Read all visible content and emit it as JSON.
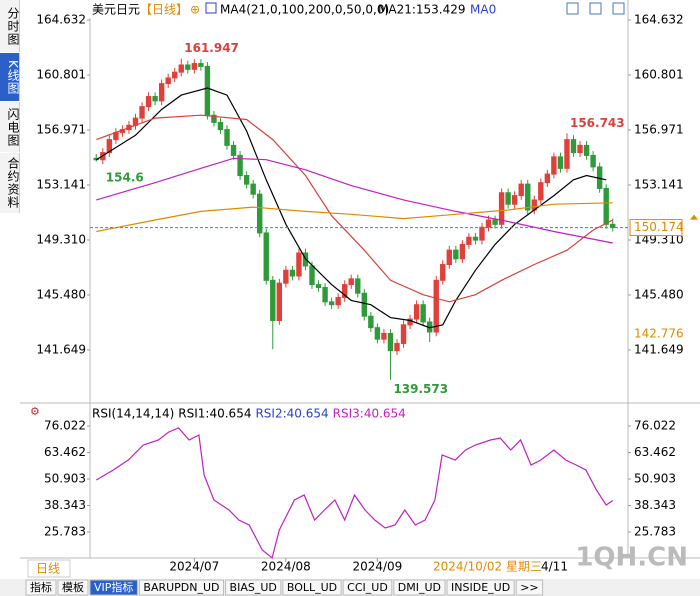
{
  "sidebar": [
    "分时图",
    "K线图",
    "闪电图",
    "合约资料"
  ],
  "header": {
    "symbol": "美元日元",
    "period": "【日线】",
    "ma_legend": "MA4(21,0,100,200,0,50,0,0)",
    "ma21": "MA21:153.429",
    "ma0": "MA0"
  },
  "chart_data": [
    {
      "type": "candlestick",
      "up_color": "#e0403a",
      "down_color": "#2f9a3a",
      "candles": [
        [
          155.0,
          155.3,
          154.774,
          154.9
        ],
        [
          154.9,
          155.7,
          154.6,
          155.4
        ],
        [
          155.4,
          156.6,
          155.1,
          156.3
        ],
        [
          156.3,
          157.1,
          156.0,
          156.8
        ],
        [
          156.8,
          157.3,
          156.5,
          157.0
        ],
        [
          157.0,
          157.6,
          156.7,
          157.3
        ],
        [
          157.3,
          158.1,
          157.0,
          157.8
        ],
        [
          157.8,
          158.9,
          157.5,
          158.6
        ],
        [
          158.6,
          159.6,
          158.3,
          159.3
        ],
        [
          159.3,
          159.6,
          158.7,
          159.0
        ],
        [
          159.0,
          160.5,
          158.7,
          160.2
        ],
        [
          160.2,
          160.9,
          159.9,
          160.6
        ],
        [
          160.6,
          161.3,
          160.3,
          161.0
        ],
        [
          161.0,
          161.947,
          160.7,
          161.5
        ],
        [
          161.5,
          161.8,
          160.9,
          161.2
        ],
        [
          161.2,
          161.9,
          160.9,
          161.6
        ],
        [
          161.6,
          161.9,
          161.1,
          161.4
        ],
        [
          161.4,
          161.7,
          157.7,
          158.0
        ],
        [
          158.0,
          158.3,
          157.2,
          157.5
        ],
        [
          157.5,
          157.8,
          156.7,
          157.0
        ],
        [
          157.0,
          157.3,
          155.6,
          155.9
        ],
        [
          155.9,
          156.2,
          154.9,
          155.2
        ],
        [
          155.2,
          155.5,
          153.5,
          153.8
        ],
        [
          153.8,
          154.1,
          152.9,
          153.2
        ],
        [
          153.2,
          153.5,
          152.2,
          152.5
        ],
        [
          152.5,
          152.8,
          149.5,
          149.8
        ],
        [
          149.8,
          150.1,
          146.2,
          146.5
        ],
        [
          146.5,
          146.8,
          141.7,
          143.7
        ],
        [
          143.7,
          146.6,
          143.4,
          146.3
        ],
        [
          146.3,
          147.5,
          146.0,
          147.2
        ],
        [
          147.2,
          147.5,
          146.5,
          146.8
        ],
        [
          146.8,
          148.7,
          146.5,
          148.4
        ],
        [
          148.4,
          148.7,
          147.2,
          147.5
        ],
        [
          147.5,
          147.8,
          145.9,
          146.2
        ],
        [
          146.2,
          146.5,
          145.7,
          146.0
        ],
        [
          146.0,
          146.3,
          144.7,
          145.0
        ],
        [
          145.0,
          145.3,
          144.5,
          144.8
        ],
        [
          144.8,
          145.6,
          144.5,
          145.3
        ],
        [
          145.3,
          146.5,
          145.0,
          146.2
        ],
        [
          146.2,
          146.9,
          145.9,
          146.6
        ],
        [
          146.6,
          146.9,
          145.3,
          145.6
        ],
        [
          145.6,
          145.9,
          143.7,
          144.0
        ],
        [
          144.0,
          144.3,
          142.9,
          143.2
        ],
        [
          143.2,
          143.5,
          142.1,
          142.4
        ],
        [
          142.4,
          143.1,
          142.1,
          142.8
        ],
        [
          142.8,
          143.1,
          139.573,
          141.6
        ],
        [
          141.6,
          142.4,
          141.3,
          142.1
        ],
        [
          142.1,
          143.7,
          141.8,
          143.4
        ],
        [
          143.4,
          144.1,
          143.1,
          143.8
        ],
        [
          143.8,
          145.1,
          143.5,
          144.8
        ],
        [
          144.8,
          145.1,
          143.3,
          143.6
        ],
        [
          143.6,
          143.9,
          142.2,
          142.9
        ],
        [
          142.9,
          146.8,
          142.6,
          146.5
        ],
        [
          146.5,
          147.9,
          146.2,
          147.6
        ],
        [
          147.6,
          148.9,
          147.3,
          148.6
        ],
        [
          148.6,
          148.9,
          147.7,
          148.0
        ],
        [
          148.0,
          149.3,
          147.7,
          149.0
        ],
        [
          149.0,
          149.8,
          148.7,
          149.5
        ],
        [
          149.5,
          149.8,
          149.0,
          149.3
        ],
        [
          149.3,
          150.5,
          149.0,
          150.2
        ],
        [
          150.2,
          151.0,
          149.9,
          150.7
        ],
        [
          150.7,
          151.0,
          150.1,
          150.4
        ],
        [
          150.4,
          152.9,
          150.1,
          152.6
        ],
        [
          152.6,
          152.9,
          151.5,
          151.8
        ],
        [
          151.8,
          152.7,
          151.5,
          152.4
        ],
        [
          152.4,
          153.5,
          152.1,
          153.2
        ],
        [
          153.2,
          153.5,
          151.1,
          151.4
        ],
        [
          151.4,
          152.4,
          151.1,
          152.1
        ],
        [
          152.1,
          153.6,
          151.8,
          153.3
        ],
        [
          153.3,
          154.2,
          153.0,
          153.9
        ],
        [
          153.9,
          155.4,
          153.6,
          155.1
        ],
        [
          155.1,
          155.4,
          154.0,
          154.3
        ],
        [
          154.3,
          156.743,
          154.0,
          156.3
        ],
        [
          156.3,
          156.6,
          155.1,
          155.4
        ],
        [
          155.4,
          156.2,
          155.1,
          155.9
        ],
        [
          155.9,
          156.2,
          154.9,
          155.2
        ],
        [
          155.2,
          155.5,
          154.1,
          154.4
        ],
        [
          154.4,
          154.7,
          152.6,
          152.9
        ],
        [
          152.9,
          153.2,
          150.1,
          150.4
        ],
        [
          150.4,
          150.8,
          149.9,
          150.174
        ]
      ],
      "series": [
        {
          "color": "#000000",
          "x": [
            0,
            6,
            10,
            13,
            17,
            20,
            23,
            26,
            29,
            32,
            36,
            39,
            42,
            45,
            48,
            51,
            53,
            55,
            58,
            61,
            64,
            67,
            70,
            73,
            75,
            78
          ],
          "values": [
            154.9,
            156.6,
            158.4,
            159.4,
            159.9,
            159.4,
            156.9,
            153.5,
            150.4,
            148.0,
            146.2,
            145.1,
            144.8,
            143.9,
            143.7,
            143.2,
            143.4,
            145.1,
            147.2,
            149.0,
            150.4,
            151.4,
            152.4,
            153.5,
            153.8,
            153.5
          ]
        },
        {
          "color": "#d9413a",
          "x": [
            0,
            9,
            16,
            23,
            27,
            32,
            36,
            41,
            45,
            50,
            54,
            58,
            62,
            67,
            72,
            76,
            79
          ],
          "values": [
            156.3,
            157.8,
            158.0,
            157.7,
            156.3,
            153.8,
            151.0,
            148.6,
            146.5,
            145.5,
            145.0,
            145.5,
            146.5,
            147.6,
            148.6,
            150.0,
            150.7
          ]
        },
        {
          "color": "#c21fc2",
          "x": [
            0,
            9,
            16,
            21,
            26,
            32,
            39,
            47,
            55,
            63,
            70,
            79
          ],
          "values": [
            152.1,
            153.3,
            154.3,
            155.0,
            154.9,
            154.2,
            153.1,
            152.1,
            151.3,
            150.6,
            149.9,
            149.1
          ]
        },
        {
          "color": "#e08a00",
          "x": [
            0,
            9,
            16,
            24,
            32,
            39,
            47,
            55,
            63,
            70,
            79
          ],
          "values": [
            149.9,
            150.7,
            151.3,
            151.6,
            151.3,
            151.1,
            150.8,
            151.1,
            151.4,
            151.8,
            151.9
          ]
        }
      ],
      "xlim": [
        -0.5,
        79.5
      ],
      "ylim": [
        138.51,
        165.47
      ],
      "yticks": [
        141.649,
        {
          "value": 145.48,
          "label": "145.480"
        },
        {
          "value": 149.31,
          "label": "149.310"
        },
        153.141,
        156.971,
        160.801,
        164.632
      ],
      "xticks": [
        {
          "value": 15,
          "label": "2024/07"
        },
        {
          "value": 29,
          "label": "2024/08"
        },
        {
          "value": 43,
          "label": "2024/09"
        }
      ],
      "marker_values": [
        142.776
      ]
    },
    {
      "type": "line",
      "legend": [
        {
          "label": "RSI(14,14,14)",
          "color": "#000000"
        },
        {
          "label": "RSI1:40.654",
          "color": "#000000"
        },
        {
          "label": "RSI2:40.654",
          "color": "#2a3fd0"
        },
        {
          "label": "RSI3:40.654",
          "color": "#c21fc2"
        }
      ],
      "series": [
        {
          "color": "#c21fc2",
          "x": [
            0,
            2.6,
            4.9,
            7.2,
            9.5,
            11.1,
            12.6,
            14.2,
            15.7,
            16.5,
            18,
            20.3,
            21.8,
            23.4,
            25.4,
            26.9,
            28,
            30.3,
            31.8,
            33.4,
            34.9,
            36.5,
            38,
            39.5,
            41.1,
            42.6,
            44.2,
            45.7,
            47.2,
            48.8,
            50.3,
            51.8,
            52.9,
            54.9,
            56.5,
            58,
            60.3,
            61.8,
            63.4,
            64.9,
            66.5,
            68,
            70,
            71.8,
            73.4,
            74.9,
            76.5,
            78,
            79
          ],
          "values": [
            50.43,
            55.17,
            59.91,
            67.02,
            69.39,
            73.18,
            75.07,
            69.39,
            71.76,
            52.8,
            40.95,
            36.21,
            31.47,
            29.1,
            17.25,
            13.46,
            26.73,
            40.95,
            43.32,
            31.47,
            36.21,
            40.95,
            31.47,
            43.32,
            36.21,
            31.47,
            27.68,
            29.1,
            36.21,
            29.1,
            31.47,
            40.95,
            62.28,
            59.91,
            64.65,
            67.02,
            69.39,
            70.34,
            64.65,
            69.39,
            57.54,
            59.91,
            64.65,
            59.91,
            57.54,
            55.17,
            45.69,
            38.58,
            40.654
          ]
        }
      ],
      "xlim": [
        -0.5,
        79.5
      ],
      "ylim": [
        12.5,
        86.0
      ],
      "yticks": [
        25.783,
        38.343,
        50.903,
        63.462,
        76.022
      ]
    }
  ],
  "period_label": "日线",
  "crosshair_date": "2024/10/02 星期三",
  "date_tail": "4/11",
  "toolbar": [
    "指标",
    "模板",
    "VIP指标",
    "BARUPDN_UD",
    "BIAS_UD",
    "BOLL_UD",
    "CCI_UD",
    "DMI_UD",
    "INSIDE_UD",
    ">>"
  ],
  "watermark": "1QH.CN"
}
